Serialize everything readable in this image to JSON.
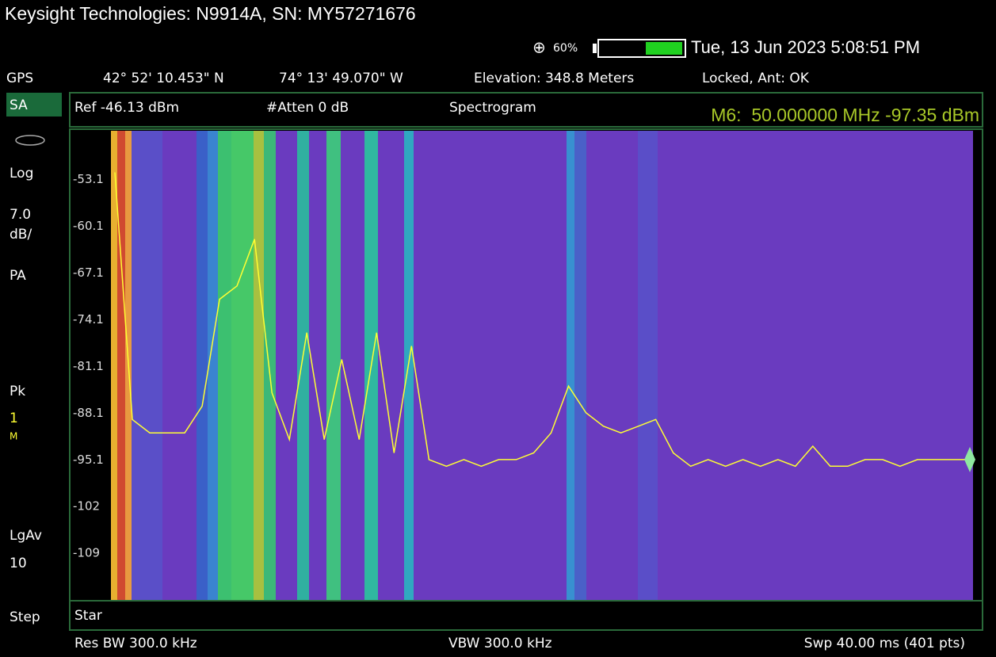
{
  "title_bar": "Keysight Technologies: N9914A, SN: MY57271676",
  "status": {
    "battery": "60%",
    "datetime": "Tue, 13 Jun 2023 5:08:51 PM"
  },
  "gps": {
    "label": "GPS",
    "lat": "42° 52' 10.453\" N",
    "lon": "74° 13' 49.070\" W",
    "elevation": "Elevation: 348.8 Meters",
    "lock": "Locked, Ant: OK"
  },
  "side": [
    "SA",
    "Log",
    "7.0",
    "dB/",
    "PA",
    "Pk",
    "1",
    "M",
    "LgAv",
    "10",
    "Step"
  ],
  "header": {
    "ref": "Ref -46.13 dBm",
    "atten": "#Atten 0 dB",
    "mode": "Spectrogram",
    "marker": "M6:  50.000000 MHz -97.35 dBm"
  },
  "chart_data": {
    "type": "line",
    "ylim": [
      -116.13,
      -46.13
    ],
    "yticks": [
      -53.1,
      -60.1,
      -67.1,
      -74.1,
      -81.1,
      -88.1,
      -95.1,
      -102,
      -109
    ],
    "series": [
      {
        "color": "#ffff33",
        "values": [
          -52,
          -89,
          -91,
          -91,
          -91,
          -87,
          -71,
          -69,
          -62,
          -85,
          -92,
          -76,
          -92,
          -80,
          -92,
          -76,
          -94,
          -78,
          -95,
          -96,
          -95,
          -96,
          -95,
          -95,
          -94,
          -91,
          -84,
          -88,
          -90,
          -91,
          -90,
          -89,
          -94,
          -96,
          -95,
          -96,
          -95,
          -96,
          -95,
          -96,
          -93,
          -96,
          -96,
          -95,
          -95,
          -96,
          -95,
          -95,
          -95,
          -95
        ]
      }
    ]
  },
  "footer": {
    "start": "Star",
    "rbw": "Res BW 300.0 kHz",
    "vbw": "VBW 300.0 kHz",
    "sweep": "Swp 40.00 ms (401 pts)"
  }
}
